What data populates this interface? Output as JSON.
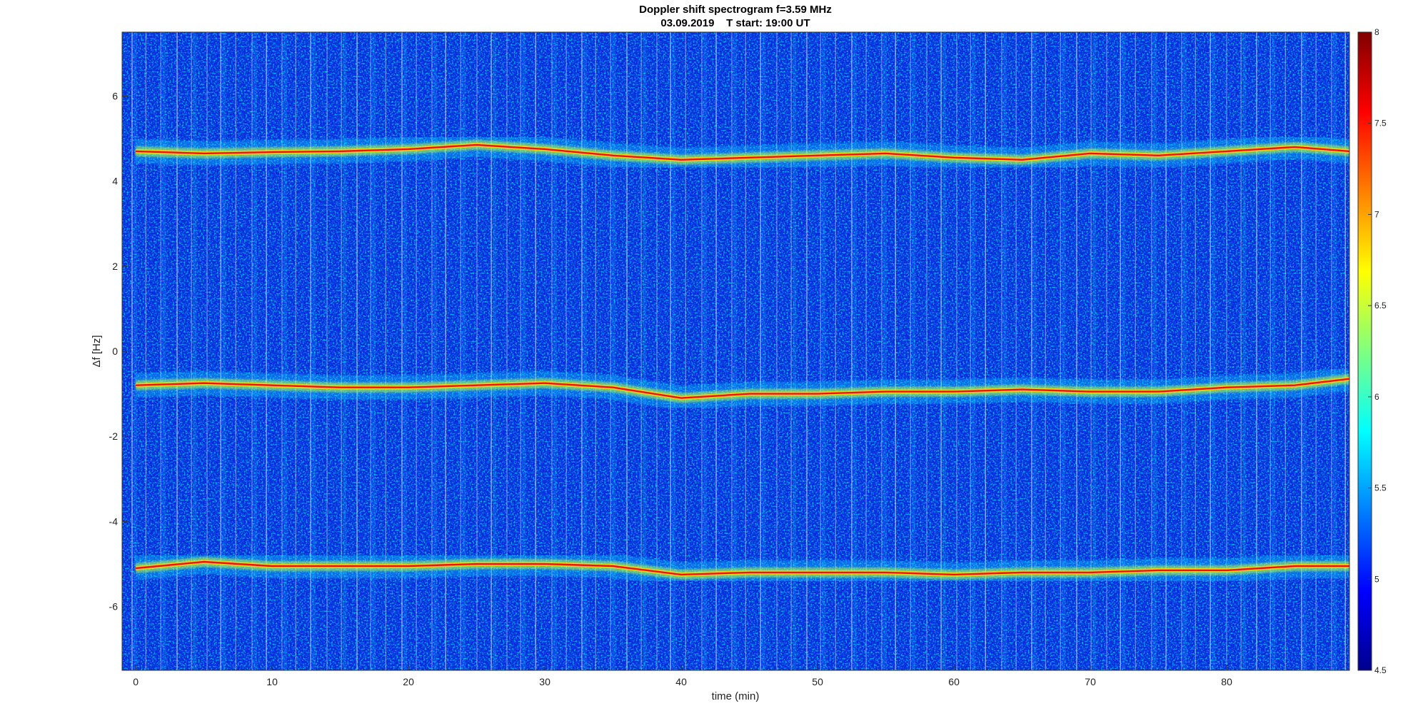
{
  "chart_data": {
    "type": "heatmap",
    "title": "Doppler shift spectrogram f=3.59 MHz",
    "subtitle": "03.09.2019    T start: 19:00 UT",
    "xlabel": "time (min)",
    "ylabel": "Δf [Hz]",
    "xlim": [
      -1,
      89
    ],
    "ylim": [
      -7.5,
      7.5
    ],
    "x_ticks": [
      0,
      10,
      20,
      30,
      40,
      50,
      60,
      70,
      80
    ],
    "y_ticks": [
      -6,
      -4,
      -2,
      0,
      2,
      4,
      6
    ],
    "colorbar": {
      "range": [
        4.5,
        8
      ],
      "ticks": [
        4.5,
        5,
        5.5,
        6,
        6.5,
        7,
        7.5,
        8
      ],
      "colormap": "jet"
    },
    "series": [
      {
        "x": [
          0,
          5,
          10,
          15,
          20,
          25,
          30,
          35,
          40,
          45,
          50,
          55,
          60,
          65,
          70,
          75,
          80,
          85,
          89
        ],
        "values": [
          4.7,
          4.65,
          4.68,
          4.7,
          4.75,
          4.85,
          4.75,
          4.6,
          4.5,
          4.55,
          4.6,
          4.65,
          4.55,
          4.5,
          4.65,
          4.6,
          4.7,
          4.8,
          4.7
        ]
      },
      {
        "x": [
          0,
          5,
          10,
          15,
          20,
          25,
          30,
          35,
          40,
          45,
          50,
          55,
          60,
          65,
          70,
          75,
          80,
          85,
          89
        ],
        "values": [
          -0.8,
          -0.75,
          -0.8,
          -0.85,
          -0.85,
          -0.8,
          -0.75,
          -0.85,
          -1.1,
          -1.0,
          -1.0,
          -0.95,
          -0.95,
          -0.9,
          -0.95,
          -0.95,
          -0.85,
          -0.8,
          -0.65
        ]
      },
      {
        "x": [
          0,
          5,
          10,
          15,
          20,
          25,
          30,
          35,
          40,
          45,
          50,
          55,
          60,
          65,
          70,
          75,
          80,
          85,
          89
        ],
        "values": [
          -5.1,
          -4.95,
          -5.05,
          -5.05,
          -5.05,
          -5.0,
          -5.0,
          -5.05,
          -5.25,
          -5.2,
          -5.2,
          -5.2,
          -5.25,
          -5.2,
          -5.2,
          -5.15,
          -5.15,
          -5.05,
          -5.05
        ]
      }
    ],
    "background_level": 5.2,
    "trace_level": 7.7
  }
}
